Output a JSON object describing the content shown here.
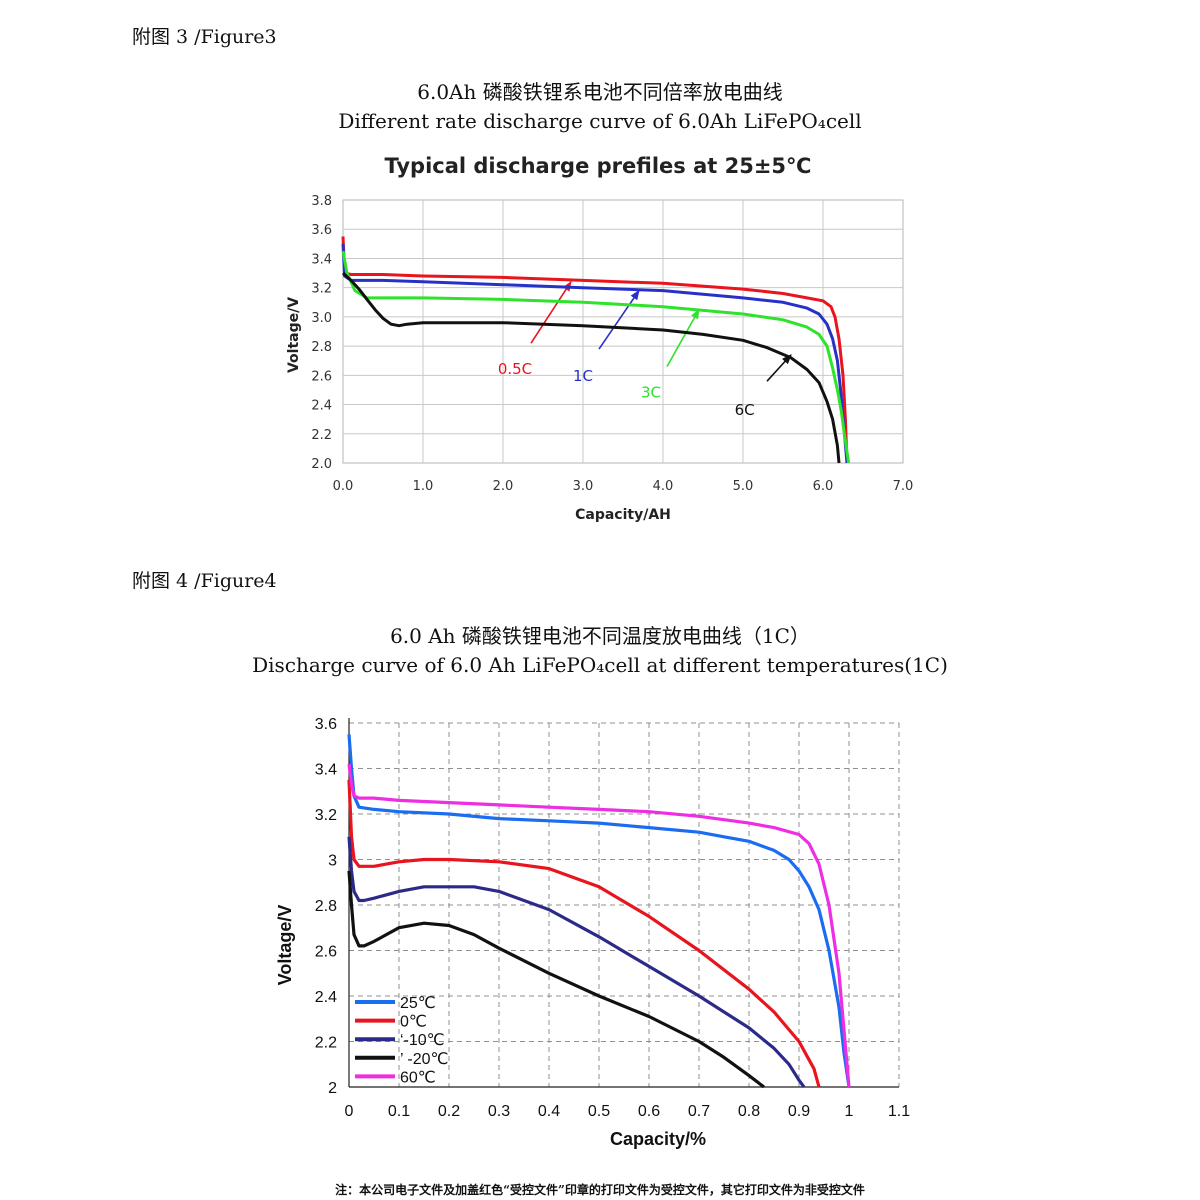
{
  "fig3_label": "附图 3 /Figure3",
  "fig3_caption_cn": "6.0Ah 磷酸铁锂系电池不同倍率放电曲线",
  "fig3_caption_en": "Different rate discharge curve of 6.0Ah LiFePO₄cell",
  "fig4_label": "附图 4 /Figure4",
  "fig4_caption_cn": "6.0 Ah 磷酸铁锂电池不同温度放电曲线（1C）",
  "fig4_caption_en": "Discharge curve of 6.0 Ah LiFePO₄cell at different temperatures(1C)",
  "footnote": "注：本公司电子文件及加盖红色“受控文件”印章的打印文件为受控文件，其它打印文件为非受控文件",
  "chart_data": [
    {
      "type": "line",
      "title": "Typical discharge prefiles at 25±5℃",
      "xlabel": "Capacity/AH",
      "ylabel": "Voltage/V",
      "xlim": [
        0,
        7
      ],
      "ylim": [
        2.0,
        3.8
      ],
      "xticks": [
        "0.0",
        "1.0",
        "2.0",
        "3.0",
        "4.0",
        "5.0",
        "6.0",
        "7.0"
      ],
      "yticks": [
        "2.0",
        "2.2",
        "2.4",
        "2.6",
        "2.8",
        "3.0",
        "3.2",
        "3.4",
        "3.6",
        "3.8"
      ],
      "grid": true,
      "series": [
        {
          "name": "0.5C",
          "color": "#e8141e",
          "label_pos": [
            2.15,
            2.61
          ],
          "arrow": [
            [
              2.35,
              2.82
            ],
            [
              2.85,
              3.24
            ]
          ],
          "x": [
            0,
            0.02,
            0.1,
            0.5,
            1,
            2,
            3,
            4,
            5,
            5.5,
            5.8,
            6.0,
            6.1,
            6.15,
            6.2,
            6.25,
            6.28,
            6.3
          ],
          "y": [
            3.55,
            3.3,
            3.29,
            3.29,
            3.28,
            3.27,
            3.25,
            3.23,
            3.19,
            3.16,
            3.13,
            3.11,
            3.07,
            3.0,
            2.85,
            2.6,
            2.3,
            2.0
          ]
        },
        {
          "name": "1C",
          "color": "#2731c8",
          "label_pos": [
            3.0,
            2.56
          ],
          "arrow": [
            [
              3.2,
              2.78
            ],
            [
              3.7,
              3.18
            ]
          ],
          "x": [
            0,
            0.02,
            0.1,
            0.5,
            1,
            2,
            3,
            4,
            5,
            5.5,
            5.8,
            5.95,
            6.05,
            6.12,
            6.18,
            6.22,
            6.26,
            6.3
          ],
          "y": [
            3.5,
            3.28,
            3.25,
            3.25,
            3.24,
            3.22,
            3.2,
            3.18,
            3.13,
            3.1,
            3.06,
            3.02,
            2.95,
            2.85,
            2.7,
            2.5,
            2.25,
            2.0
          ]
        },
        {
          "name": "3C",
          "color": "#2fe22b",
          "label_pos": [
            3.85,
            2.45
          ],
          "arrow": [
            [
              4.05,
              2.66
            ],
            [
              4.45,
              3.05
            ]
          ],
          "x": [
            0,
            0.05,
            0.15,
            0.3,
            0.5,
            1,
            2,
            3,
            4,
            5,
            5.5,
            5.8,
            5.95,
            6.05,
            6.12,
            6.18,
            6.23,
            6.28,
            6.32
          ],
          "y": [
            3.45,
            3.3,
            3.18,
            3.13,
            3.13,
            3.13,
            3.12,
            3.1,
            3.07,
            3.02,
            2.98,
            2.93,
            2.88,
            2.8,
            2.65,
            2.5,
            2.35,
            2.15,
            2.0
          ]
        },
        {
          "name": "6C",
          "color": "#111111",
          "label_pos": [
            5.02,
            2.33
          ],
          "arrow": [
            [
              5.3,
              2.56
            ],
            [
              5.6,
              2.74
            ]
          ],
          "x": [
            0,
            0.1,
            0.2,
            0.3,
            0.4,
            0.5,
            0.6,
            0.7,
            0.8,
            1,
            2,
            3,
            4,
            4.5,
            5,
            5.3,
            5.6,
            5.8,
            5.95,
            6.05,
            6.12,
            6.18,
            6.2
          ],
          "y": [
            3.3,
            3.25,
            3.19,
            3.12,
            3.05,
            2.99,
            2.95,
            2.94,
            2.95,
            2.96,
            2.96,
            2.94,
            2.91,
            2.88,
            2.84,
            2.79,
            2.72,
            2.64,
            2.55,
            2.42,
            2.3,
            2.12,
            2.0
          ]
        }
      ]
    },
    {
      "type": "line",
      "title": "",
      "xlabel": "Capacity/%",
      "ylabel": "Voltage/V",
      "xlim": [
        0,
        1.1
      ],
      "ylim": [
        2,
        3.6
      ],
      "xticks": [
        "0",
        "0.1",
        "0.2",
        "0.3",
        "0.4",
        "0.5",
        "0.6",
        "0.7",
        "0.8",
        "0.9",
        "1",
        "1.1"
      ],
      "yticks": [
        "2",
        "2.2",
        "2.4",
        "2.6",
        "2.8",
        "3",
        "3.2",
        "3.4",
        "3.6"
      ],
      "grid": true,
      "legend_position": "lower-left",
      "series": [
        {
          "name": "25℃",
          "color": "#1a6cf0",
          "x": [
            0,
            0.005,
            0.01,
            0.02,
            0.05,
            0.1,
            0.2,
            0.3,
            0.4,
            0.5,
            0.6,
            0.7,
            0.75,
            0.8,
            0.85,
            0.88,
            0.9,
            0.92,
            0.94,
            0.96,
            0.98,
            0.99,
            1.0
          ],
          "y": [
            3.55,
            3.4,
            3.28,
            3.23,
            3.22,
            3.21,
            3.2,
            3.18,
            3.17,
            3.16,
            3.14,
            3.12,
            3.1,
            3.08,
            3.04,
            3.0,
            2.95,
            2.88,
            2.78,
            2.6,
            2.35,
            2.15,
            2.0
          ]
        },
        {
          "name": "0℃",
          "color": "#e8141e",
          "x": [
            0,
            0.005,
            0.01,
            0.02,
            0.03,
            0.05,
            0.1,
            0.15,
            0.2,
            0.3,
            0.4,
            0.5,
            0.6,
            0.7,
            0.8,
            0.85,
            0.9,
            0.93,
            0.94
          ],
          "y": [
            3.35,
            3.1,
            3.0,
            2.97,
            2.97,
            2.97,
            2.99,
            3.0,
            3.0,
            2.99,
            2.96,
            2.88,
            2.75,
            2.6,
            2.43,
            2.33,
            2.2,
            2.08,
            2.0
          ]
        },
        {
          "name": "-10℃",
          "legend_text": "‘-10℃",
          "color": "#2c2a88",
          "x": [
            0,
            0.005,
            0.01,
            0.02,
            0.03,
            0.05,
            0.1,
            0.15,
            0.2,
            0.25,
            0.3,
            0.4,
            0.5,
            0.6,
            0.7,
            0.8,
            0.85,
            0.88,
            0.9,
            0.91
          ],
          "y": [
            3.1,
            2.95,
            2.86,
            2.82,
            2.82,
            2.83,
            2.86,
            2.88,
            2.88,
            2.88,
            2.86,
            2.78,
            2.66,
            2.53,
            2.4,
            2.26,
            2.17,
            2.1,
            2.03,
            2.0
          ]
        },
        {
          "name": "-20℃",
          "legend_text": "’ -20℃",
          "color": "#111111",
          "x": [
            0,
            0.005,
            0.01,
            0.02,
            0.03,
            0.05,
            0.1,
            0.15,
            0.2,
            0.25,
            0.3,
            0.4,
            0.5,
            0.6,
            0.7,
            0.75,
            0.8,
            0.83
          ],
          "y": [
            2.95,
            2.8,
            2.67,
            2.62,
            2.62,
            2.64,
            2.7,
            2.72,
            2.71,
            2.67,
            2.61,
            2.5,
            2.4,
            2.31,
            2.2,
            2.13,
            2.05,
            2.0
          ]
        },
        {
          "name": "60℃",
          "color": "#ee2ee2",
          "x": [
            0,
            0.005,
            0.01,
            0.02,
            0.05,
            0.1,
            0.2,
            0.3,
            0.4,
            0.5,
            0.6,
            0.7,
            0.8,
            0.85,
            0.9,
            0.92,
            0.94,
            0.96,
            0.98,
            0.99,
            1.0
          ],
          "y": [
            3.42,
            3.33,
            3.28,
            3.27,
            3.27,
            3.26,
            3.25,
            3.24,
            3.23,
            3.22,
            3.21,
            3.19,
            3.16,
            3.14,
            3.11,
            3.07,
            2.98,
            2.8,
            2.5,
            2.25,
            2.0
          ]
        }
      ]
    }
  ]
}
